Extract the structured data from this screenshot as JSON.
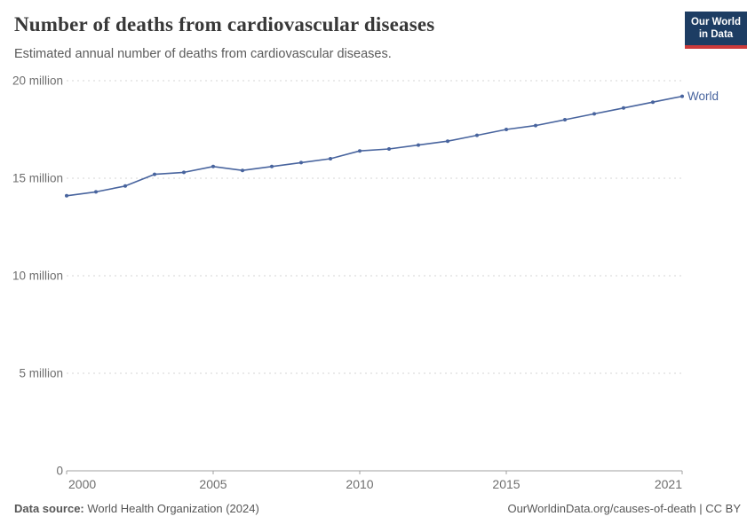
{
  "header": {
    "title": "Number of deaths from cardiovascular diseases",
    "subtitle": "Estimated annual number of deaths from cardiovascular diseases.",
    "logo": {
      "line1": "Our World",
      "line2": "in Data"
    }
  },
  "chart_data": {
    "type": "line",
    "title": "Number of deaths from cardiovascular diseases",
    "units": "millions of deaths per year",
    "x": [
      2000,
      2001,
      2002,
      2003,
      2004,
      2005,
      2006,
      2007,
      2008,
      2009,
      2010,
      2011,
      2012,
      2013,
      2014,
      2015,
      2016,
      2017,
      2018,
      2019,
      2020,
      2021
    ],
    "series": [
      {
        "name": "World",
        "color": "#48649e",
        "values": [
          14.1,
          14.3,
          14.6,
          15.2,
          15.3,
          15.6,
          15.4,
          15.6,
          15.8,
          16.0,
          16.4,
          16.5,
          16.7,
          16.9,
          17.2,
          17.5,
          17.7,
          18.0,
          18.3,
          18.6,
          18.9,
          19.2
        ]
      }
    ],
    "xlabel": "",
    "ylabel": "",
    "ylim_millions": [
      0,
      20
    ],
    "y_ticks": [
      0,
      5,
      10,
      15,
      20
    ],
    "y_tick_labels": [
      "0",
      "5 million",
      "10 million",
      "15 million",
      "20 million"
    ],
    "x_ticks": [
      2000,
      2005,
      2010,
      2015,
      2021
    ],
    "grid": "horizontal-dashed",
    "legend": "end-of-line-label"
  },
  "footer": {
    "source_label": "Data source:",
    "source_value": "World Health Organization (2024)",
    "attribution": "OurWorldinData.org/causes-of-death | CC BY"
  },
  "colors": {
    "line": "#48649e",
    "grid": "#d6d6d6",
    "axis": "#a1a1a1",
    "tick_text": "#6e6e6e",
    "title_text": "#383838",
    "subtitle_text": "#5b5b5b",
    "footer_text": "#575757",
    "logo_bg": "#1d3d63",
    "logo_accent": "#cc3a3a"
  }
}
